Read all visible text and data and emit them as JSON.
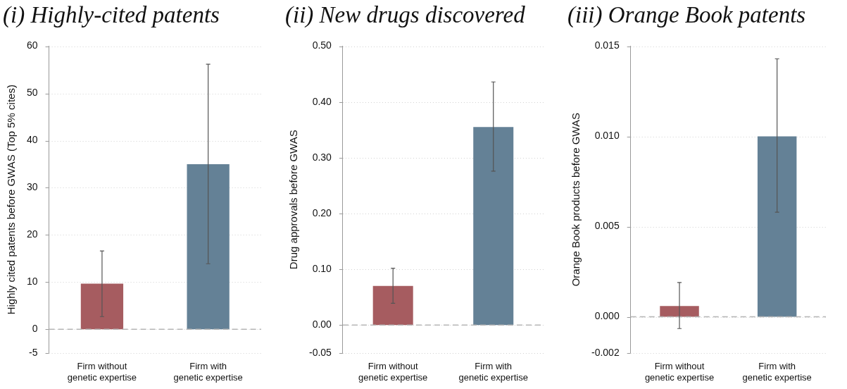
{
  "chart_data": [
    {
      "type": "bar",
      "title": "(i) Highly-cited patents",
      "ylabel": "Highly cited patents before GWAS (Top 5% cites)",
      "categories": [
        "Firm without genetic expertise",
        "Firm with genetic expertise"
      ],
      "values": [
        9.7,
        35.0
      ],
      "colors": [
        "#a65c60",
        "#648196"
      ],
      "errors": [
        [
          2.7,
          16.6
        ],
        [
          13.9,
          56.2
        ]
      ],
      "ylim": [
        -5,
        60
      ],
      "yticks": [
        -5,
        0,
        10,
        20,
        30,
        40,
        50,
        60
      ],
      "grid": "y",
      "legend": false,
      "ref_lines": [
        {
          "axis": "y",
          "value": 0,
          "color": "#b5b5b5",
          "line_style": "dashed"
        }
      ]
    },
    {
      "type": "bar",
      "title": "(ii) New drugs discovered",
      "ylabel": "Drug approvals before GWAS",
      "categories": [
        "Firm without genetic expertise",
        "Firm with genetic expertise"
      ],
      "values": [
        0.07,
        0.355
      ],
      "colors": [
        "#a65c60",
        "#648196"
      ],
      "errors": [
        [
          0.039,
          0.102
        ],
        [
          0.276,
          0.436
        ]
      ],
      "ylim": [
        -0.05,
        0.5
      ],
      "yticks": [
        -0.05,
        {
          "value": 0,
          "label": "0.00"
        },
        {
          "value": 0.1,
          "label": "0.10"
        },
        {
          "value": 0.2,
          "label": "0.20"
        },
        {
          "value": 0.3,
          "label": "0.30"
        },
        {
          "value": 0.4,
          "label": "0.40"
        },
        {
          "value": 0.5,
          "label": "0.50"
        }
      ],
      "grid": "y",
      "legend": false,
      "ref_lines": [
        {
          "axis": "y",
          "value": 0,
          "color": "#b5b5b5",
          "line_style": "dashed"
        }
      ]
    },
    {
      "type": "bar",
      "title": "(iii) Orange Book patents",
      "ylabel": "Orange Book products before GWAS",
      "categories": [
        "Firm without genetic expertise",
        "Firm with genetic expertise"
      ],
      "values": [
        0.0006,
        0.01
      ],
      "colors": [
        "#a65c60",
        "#648196"
      ],
      "errors": [
        [
          -0.00065,
          0.0019
        ],
        [
          0.0058,
          0.0143
        ]
      ],
      "ylim": [
        -0.002,
        0.015
      ],
      "yticks": [
        -0.002,
        {
          "value": 0,
          "label": "0.000"
        },
        0.005,
        {
          "value": 0.01,
          "label": "0.010"
        },
        0.015
      ],
      "grid": "y",
      "legend": false,
      "ref_lines": [
        {
          "axis": "y",
          "value": 0,
          "color": "#b5b5b5",
          "line_style": "dashed"
        }
      ]
    }
  ]
}
